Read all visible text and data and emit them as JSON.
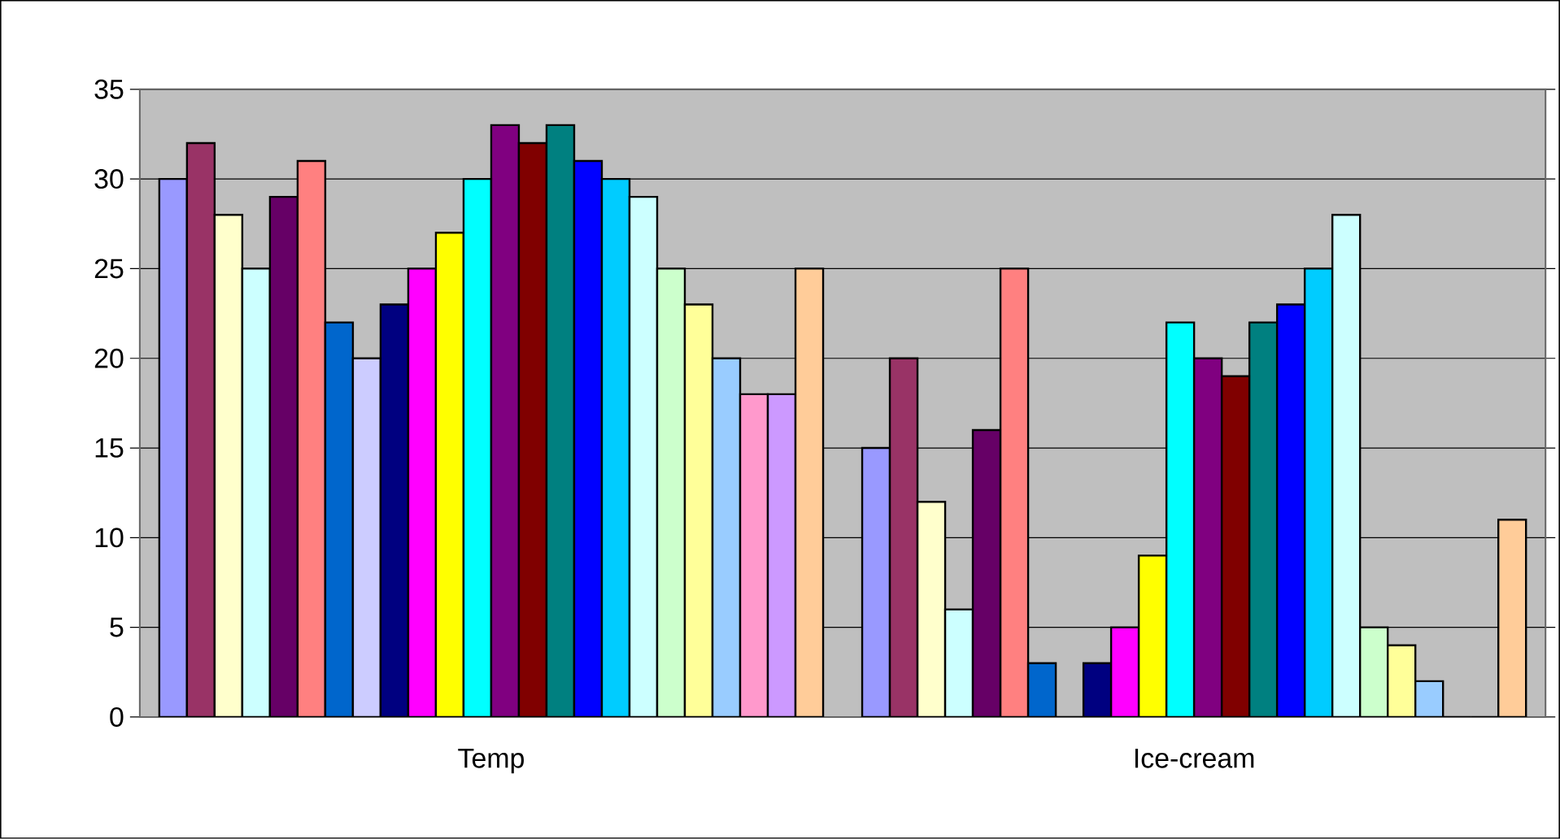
{
  "chart_data": {
    "type": "bar",
    "categories": [
      "Temp",
      "Ice-cream"
    ],
    "series": [
      {
        "color": "#9999ff",
        "values": [
          30,
          15
        ]
      },
      {
        "color": "#993366",
        "values": [
          32,
          20
        ]
      },
      {
        "color": "#ffffcc",
        "values": [
          28,
          12
        ]
      },
      {
        "color": "#ccffff",
        "values": [
          25,
          6
        ]
      },
      {
        "color": "#660066",
        "values": [
          29,
          16
        ]
      },
      {
        "color": "#ff8080",
        "values": [
          31,
          25
        ]
      },
      {
        "color": "#0066cc",
        "values": [
          22,
          3
        ]
      },
      {
        "color": "#ccccff",
        "values": [
          20,
          0
        ]
      },
      {
        "color": "#000080",
        "values": [
          23,
          3
        ]
      },
      {
        "color": "#ff00ff",
        "values": [
          25,
          5
        ]
      },
      {
        "color": "#ffff00",
        "values": [
          27,
          9
        ]
      },
      {
        "color": "#00ffff",
        "values": [
          30,
          22
        ]
      },
      {
        "color": "#800080",
        "values": [
          33,
          20
        ]
      },
      {
        "color": "#800000",
        "values": [
          32,
          19
        ]
      },
      {
        "color": "#008080",
        "values": [
          33,
          22
        ]
      },
      {
        "color": "#0000ff",
        "values": [
          31,
          23
        ]
      },
      {
        "color": "#00ccff",
        "values": [
          30,
          25
        ]
      },
      {
        "color": "#ccffff",
        "values": [
          29,
          28
        ]
      },
      {
        "color": "#ccffcc",
        "values": [
          25,
          5
        ]
      },
      {
        "color": "#ffff99",
        "values": [
          23,
          4
        ]
      },
      {
        "color": "#99ccff",
        "values": [
          20,
          2
        ]
      },
      {
        "color": "#ff99cc",
        "values": [
          18,
          0
        ]
      },
      {
        "color": "#cc99ff",
        "values": [
          18,
          0
        ]
      },
      {
        "color": "#ffcc99",
        "values": [
          25,
          11
        ]
      }
    ],
    "ylim": [
      0,
      35
    ],
    "yticks": [
      0,
      5,
      10,
      15,
      20,
      25,
      30,
      35
    ],
    "grid": "y"
  }
}
